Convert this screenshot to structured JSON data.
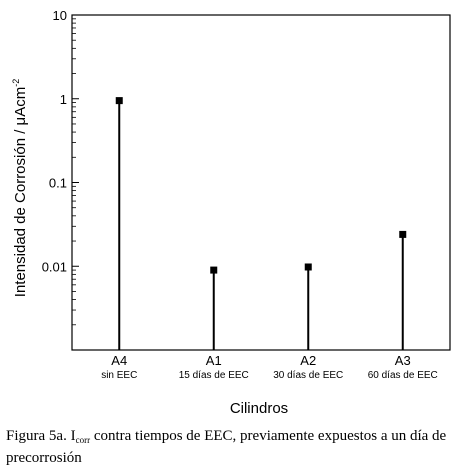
{
  "chart_data": {
    "type": "scatter",
    "style": "stem",
    "xlabel": "Cilindros",
    "ylabel_main": "Intensidad de Corrosión / μAcm",
    "ylabel_sup": "-2",
    "yscale": "log",
    "ylim": [
      0.001,
      10
    ],
    "ytick_labels": [
      "10",
      "1",
      "0.1",
      "0.01"
    ],
    "ytick_values": [
      10,
      1,
      0.1,
      0.01
    ],
    "grid": false,
    "legend": "none",
    "categories": [
      "A4",
      "A1",
      "A2",
      "A3"
    ],
    "subcategories": [
      "sin EEC",
      "15 días de EEC",
      "30 días de EEC",
      "60 días de EEC"
    ],
    "values": [
      0.95,
      0.009,
      0.0098,
      0.024
    ]
  },
  "caption": {
    "prefix": "Figura 5a. I",
    "subscript": "corr",
    "rest": " contra tiempos de EEC, previamente expuestos a un día de precorrosión"
  }
}
